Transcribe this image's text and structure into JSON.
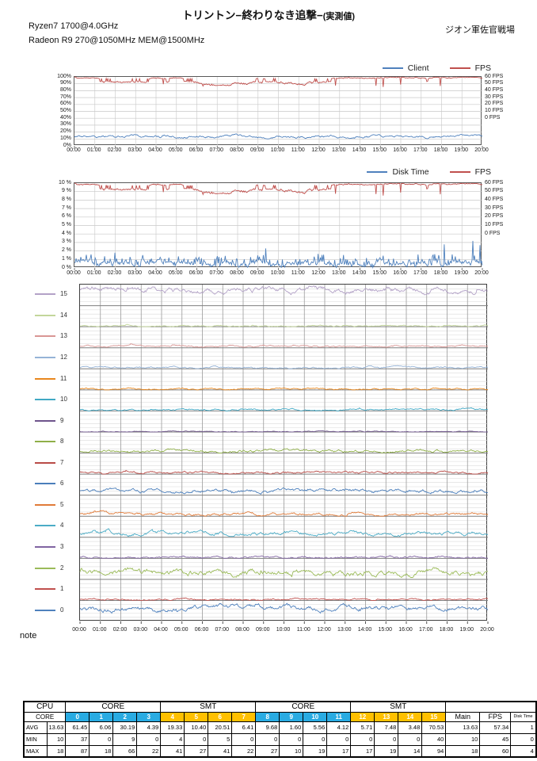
{
  "page": {
    "title_main": "トリントン−終わりなき追撃−",
    "title_suffix": "(実測値)",
    "spec_lines": [
      "Ryzen7 1700@4.0GHz",
      "Radeon R9 270@1050MHz MEM@1500MHz"
    ],
    "right_label": "ジオン軍佐官戦場",
    "note_label": "note"
  },
  "time_ticks": [
    "00:00",
    "01:00",
    "02:00",
    "03:00",
    "04:00",
    "05:00",
    "06:00",
    "07:00",
    "08:00",
    "09:00",
    "10:00",
    "11:00",
    "12:00",
    "13:00",
    "14:00",
    "15:00",
    "16:00",
    "17:00",
    "18:00",
    "19:00",
    "20:00"
  ],
  "chart_data": [
    {
      "id": "client-fps",
      "type": "line",
      "legend": [
        {
          "label": "Client",
          "color": "#4F81BD"
        },
        {
          "label": "FPS",
          "color": "#C0504D"
        }
      ],
      "left_ticks": [
        "100%",
        "90%",
        "80%",
        "70%",
        "60%",
        "50%",
        "40%",
        "30%",
        "20%",
        "10%",
        "0%"
      ],
      "left_range": [
        0,
        100
      ],
      "right_ticks": [
        "60 FPS",
        "50 FPS",
        "40 FPS",
        "30 FPS",
        "20 FPS",
        "10 FPS",
        "0 FPS"
      ],
      "x_label_note": "time 00:00-20:00 hourly",
      "series": [
        {
          "name": "Client",
          "unit": "%",
          "color": "#4F81BD",
          "avg": 13.63,
          "min": 10,
          "max": 18,
          "model": "walk",
          "seed": 11
        },
        {
          "name": "FPS",
          "unit": "FPS",
          "color": "#C0504D",
          "avg": 57.34,
          "min": 45,
          "max": 60,
          "model": "peg",
          "seed": 7
        }
      ]
    },
    {
      "id": "disktime-fps",
      "type": "line",
      "legend": [
        {
          "label": "Disk Time",
          "color": "#4F81BD"
        },
        {
          "label": "FPS",
          "color": "#C0504D"
        }
      ],
      "left_ticks": [
        "10 %",
        "9 %",
        "8 %",
        "7 %",
        "6 %",
        "5 %",
        "4 %",
        "3 %",
        "2 %",
        "1 %",
        "0 %"
      ],
      "left_range": [
        0,
        10
      ],
      "right_ticks": [
        "60 FPS",
        "50 FPS",
        "40 FPS",
        "30 FPS",
        "20 FPS",
        "10 FPS",
        "0 FPS"
      ],
      "x_label_note": "time 00:00-20:00 hourly",
      "series": [
        {
          "name": "Disk Time",
          "unit": "%",
          "color": "#4F81BD",
          "avg": 1,
          "min": 0,
          "max": 4,
          "model": "spike",
          "seed": 23
        },
        {
          "name": "FPS",
          "unit": "FPS",
          "color": "#C0504D",
          "avg": 57.34,
          "min": 45,
          "max": 60,
          "model": "peg",
          "seed": 7
        }
      ]
    },
    {
      "id": "core-usage-strip",
      "type": "line",
      "band_range_percent": [
        0,
        100
      ],
      "x_label_note": "time 00:00-20:00 hourly",
      "series": [
        {
          "name": "15",
          "color": "#B3A2C7",
          "avg": 70.53,
          "min": 40,
          "max": 94,
          "model": "walk",
          "seed": 115
        },
        {
          "name": "14",
          "color": "#C3D69B",
          "avg": 3.48,
          "min": 0,
          "max": 14,
          "model": "walk",
          "seed": 114
        },
        {
          "name": "13",
          "color": "#D99694",
          "avg": 7.48,
          "min": 0,
          "max": 19,
          "model": "walk",
          "seed": 113
        },
        {
          "name": "12",
          "color": "#95B3D7",
          "avg": 5.71,
          "min": 0,
          "max": 17,
          "model": "walk",
          "seed": 112
        },
        {
          "name": "11",
          "color": "#E8871E",
          "avg": 4.12,
          "min": 0,
          "max": 17,
          "model": "walk",
          "seed": 111
        },
        {
          "name": "10",
          "color": "#41A8C4",
          "avg": 5.56,
          "min": 0,
          "max": 19,
          "model": "walk",
          "seed": 110
        },
        {
          "name": "9",
          "color": "#6E548C",
          "avg": 1.6,
          "min": 0,
          "max": 10,
          "model": "walk",
          "seed": 109
        },
        {
          "name": "8",
          "color": "#8FAF48",
          "avg": 9.68,
          "min": 0,
          "max": 27,
          "model": "walk",
          "seed": 108
        },
        {
          "name": "7",
          "color": "#B94B47",
          "avg": 6.41,
          "min": 0,
          "max": 22,
          "model": "walk",
          "seed": 107
        },
        {
          "name": "6",
          "color": "#4A7EBB",
          "avg": 20.51,
          "min": 5,
          "max": 41,
          "model": "walk",
          "seed": 106
        },
        {
          "name": "5",
          "color": "#E07B39",
          "avg": 10.4,
          "min": 0,
          "max": 27,
          "model": "walk",
          "seed": 105
        },
        {
          "name": "4",
          "color": "#4BACC6",
          "avg": 19.33,
          "min": 4,
          "max": 41,
          "model": "walk",
          "seed": 104
        },
        {
          "name": "3",
          "color": "#8064A2",
          "avg": 4.39,
          "min": 0,
          "max": 22,
          "model": "walk",
          "seed": 103
        },
        {
          "name": "2",
          "color": "#9BBB59",
          "avg": 30.19,
          "min": 9,
          "max": 66,
          "model": "walk",
          "seed": 102
        },
        {
          "name": "1",
          "color": "#C0504D",
          "avg": 6.06,
          "min": 0,
          "max": 18,
          "model": "walk",
          "seed": 101
        },
        {
          "name": "0",
          "color": "#4F81BD",
          "avg": 61.45,
          "min": 37,
          "max": 87,
          "model": "walk",
          "seed": 100
        }
      ]
    }
  ],
  "table": {
    "colors": {
      "blue": "#29ABE2",
      "orange": "#FFC000"
    },
    "groups": [
      {
        "label": "CPU",
        "span": 2
      },
      {
        "label": "CORE",
        "span": 4
      },
      {
        "label": "SMT",
        "span": 4
      },
      {
        "label": "CORE",
        "span": 4
      },
      {
        "label": "SMT",
        "span": 4
      },
      {
        "label": "",
        "span": 3
      }
    ],
    "core_header_label": "CORE",
    "core_numbers": [
      "0",
      "1",
      "2",
      "3",
      "4",
      "5",
      "6",
      "7",
      "8",
      "9",
      "10",
      "11",
      "12",
      "13",
      "14",
      "15"
    ],
    "core_cell_colors": [
      "blue",
      "blue",
      "blue",
      "blue",
      "orange",
      "orange",
      "orange",
      "orange",
      "blue",
      "blue",
      "blue",
      "blue",
      "orange",
      "orange",
      "orange",
      "orange"
    ],
    "tail_headers": [
      "Main",
      "FPS",
      "Disk Time"
    ],
    "rows": [
      {
        "label": "AVG",
        "cpu": "13.63",
        "cores": [
          "61.45",
          "6.06",
          "30.19",
          "4.39",
          "19.33",
          "10.40",
          "20.51",
          "6.41",
          "9.68",
          "1.60",
          "5.56",
          "4.12",
          "5.71",
          "7.48",
          "3.48",
          "70.53"
        ],
        "main": "13.63",
        "fps": "57.34",
        "disk": "1"
      },
      {
        "label": "MIN",
        "cpu": "10",
        "cores": [
          "37",
          "0",
          "9",
          "0",
          "4",
          "0",
          "5",
          "0",
          "0",
          "0",
          "0",
          "0",
          "0",
          "0",
          "0",
          "40"
        ],
        "main": "10",
        "fps": "45",
        "disk": "0"
      },
      {
        "label": "MAX",
        "cpu": "18",
        "cores": [
          "87",
          "18",
          "66",
          "22",
          "41",
          "27",
          "41",
          "22",
          "27",
          "10",
          "19",
          "17",
          "17",
          "19",
          "14",
          "94"
        ],
        "main": "18",
        "fps": "60",
        "disk": "4"
      }
    ]
  }
}
